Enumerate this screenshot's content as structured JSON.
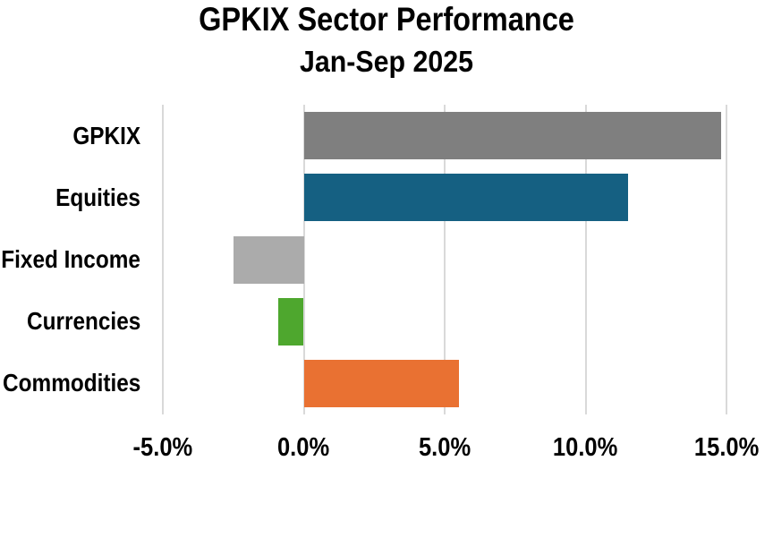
{
  "chart_data": {
    "type": "bar",
    "orientation": "horizontal",
    "title": "GPKIX Sector Performance",
    "subtitle": "Jan-Sep 2025",
    "categories": [
      "GPKIX",
      "Equities",
      "Fixed Income",
      "Currencies",
      "Commodities"
    ],
    "values": [
      14.8,
      11.5,
      -2.5,
      -0.9,
      5.5
    ],
    "bar_colors": [
      "#7F7F7F",
      "#156082",
      "#ABABAB",
      "#4EA72E",
      "#E97132"
    ],
    "x_ticks": [
      -5,
      0,
      5,
      10,
      15
    ],
    "x_tick_labels": [
      "-5.0%",
      "0.0%",
      "5.0%",
      "10.0%",
      "15.0%"
    ],
    "xlim": [
      -5,
      15
    ],
    "grid": true,
    "legend": "none",
    "gridline_color": "#D9D9D9",
    "text_color": "#000000",
    "background_color": "#FFFFFF"
  }
}
